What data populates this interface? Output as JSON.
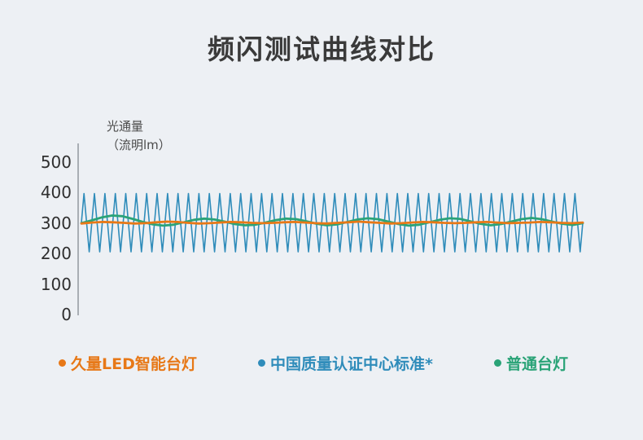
{
  "title": "频闪测试曲线对比",
  "page": {
    "background": "#edf0f4"
  },
  "chart_data": {
    "type": "line",
    "title": "频闪测试曲线对比",
    "ylabel_line1": "光通量",
    "ylabel_line2": "（流明lm）",
    "yticks": [
      500,
      400,
      300,
      200,
      100,
      0
    ],
    "ylim": [
      0,
      560
    ],
    "grid": false,
    "legend_position": "bottom",
    "series": [
      {
        "name": "中国质量认证中心标准*",
        "color": "#2f8cba",
        "waveform": "triangle",
        "min": 205,
        "max": 396,
        "cycles": 48,
        "description": "high-frequency flicker oscillating between ~205 lm and ~396 lm"
      },
      {
        "name": "普通台灯",
        "color": "#2aa377",
        "values": [
          299,
          308,
          318,
          324,
          322,
          313,
          303,
          295,
          291,
          294,
          302,
          310,
          314,
          311,
          304,
          296,
          292,
          294,
          301,
          309,
          314,
          312,
          305,
          297,
          292,
          295,
          303,
          311,
          315,
          312,
          304,
          296,
          291,
          294,
          302,
          310,
          315,
          313,
          305,
          297,
          292,
          296,
          304,
          312,
          316,
          312,
          304,
          297,
          293,
          299
        ]
      },
      {
        "name": "久量LED智能台灯",
        "color": "#e77817",
        "values": [
          298,
          301,
          303,
          302,
          300,
          298,
          299,
          302,
          304,
          303,
          300,
          298,
          299,
          301,
          303,
          302,
          300,
          299,
          300,
          302,
          303,
          301,
          299,
          298,
          300,
          302,
          304,
          302,
          300,
          298,
          299,
          301,
          303,
          302,
          300,
          299,
          300,
          302,
          303,
          301,
          299,
          300,
          301,
          303,
          302,
          300,
          299,
          301
        ]
      }
    ],
    "legend": [
      {
        "label": "久量LED智能台灯",
        "color": "#e77817"
      },
      {
        "label": "中国质量认证中心标准*",
        "color": "#2f8cba"
      },
      {
        "label": "普通台灯",
        "color": "#2aa377"
      }
    ]
  }
}
